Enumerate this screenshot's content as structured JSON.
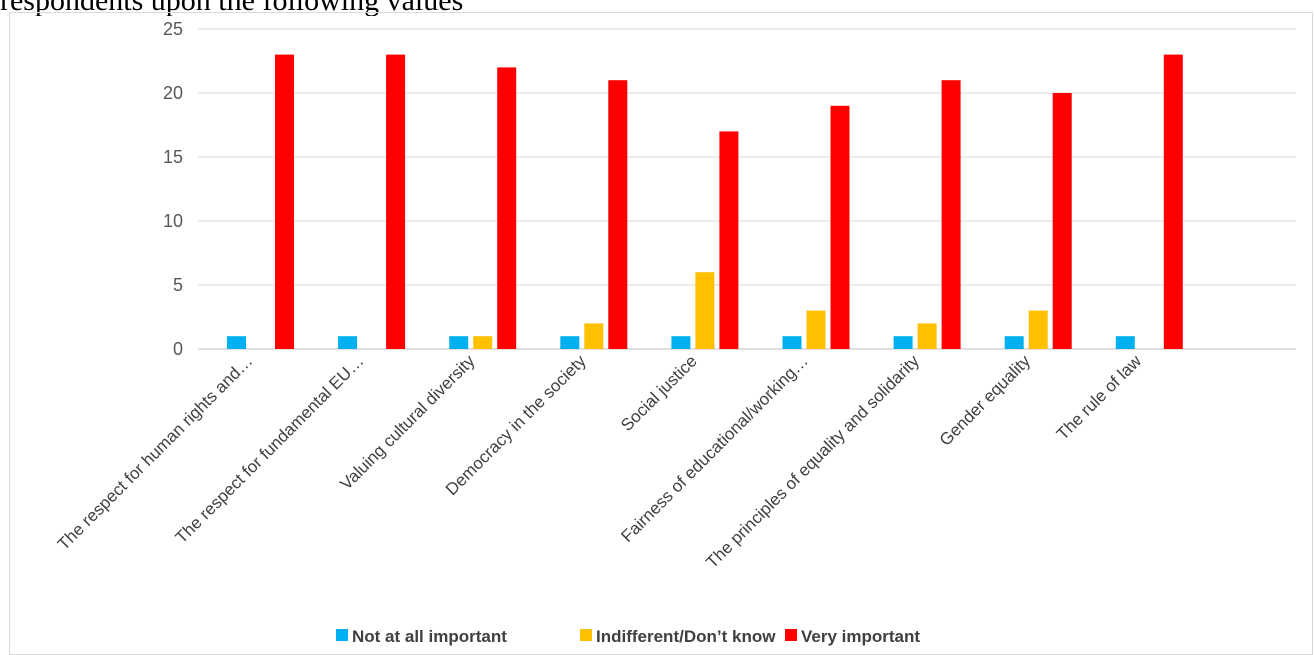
{
  "header": {
    "text": "     respondents upon the following values"
  },
  "chart_data": {
    "type": "bar",
    "categories": [
      "The respect for human rights and…",
      "The respect for fundamental EU…",
      "Valuing cultural diversity",
      "Democracy in the society",
      "Social justice",
      "Fairness of educational/working…",
      "The principles of equality and solidarity",
      "Gender equality",
      "The rule of law"
    ],
    "series": [
      {
        "name": "Not at all  important",
        "color": "#00b0f0",
        "values": [
          1,
          1,
          1,
          1,
          1,
          1,
          1,
          1,
          1
        ]
      },
      {
        "name": "Indifferent/Don’t know",
        "color": "#ffc000",
        "values": [
          0,
          0,
          1,
          2,
          6,
          3,
          2,
          3,
          0
        ]
      },
      {
        "name": "Very important",
        "color": "#ff0000",
        "values": [
          23,
          23,
          22,
          21,
          17,
          19,
          21,
          20,
          23
        ]
      }
    ],
    "ylim": [
      0,
      25
    ],
    "yticks": [
      0,
      5,
      10,
      15,
      20,
      25
    ],
    "title": "",
    "xlabel": "",
    "ylabel": "",
    "grid": true,
    "legend_position": "bottom"
  }
}
